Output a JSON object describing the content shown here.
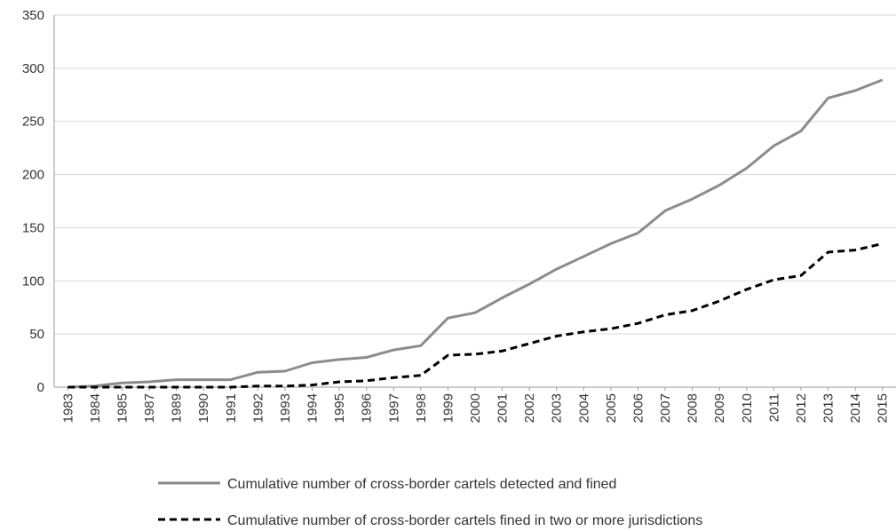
{
  "chart_data": {
    "type": "line",
    "categories": [
      "1983",
      "1984",
      "1985",
      "1987",
      "1989",
      "1990",
      "1991",
      "1992",
      "1993",
      "1994",
      "1995",
      "1996",
      "1997",
      "1998",
      "1999",
      "2000",
      "2001",
      "2002",
      "2003",
      "2004",
      "2005",
      "2006",
      "2007",
      "2008",
      "2009",
      "2010",
      "2011",
      "2012",
      "2013",
      "2014",
      "2015"
    ],
    "series": [
      {
        "name": "Cumulative number of cross-border cartels detected and fined",
        "style": "solid",
        "color": "#8c8c8c",
        "values": [
          0,
          1,
          4,
          5,
          7,
          7,
          7,
          14,
          15,
          23,
          26,
          28,
          35,
          39,
          65,
          70,
          84,
          97,
          111,
          123,
          135,
          145,
          166,
          177,
          190,
          206,
          227,
          241,
          272,
          279,
          289
        ]
      },
      {
        "name": "Cumulative number of cross-border cartels fined in two or more jurisdictions",
        "style": "dashed",
        "color": "#000000",
        "values": [
          0,
          0,
          0,
          0,
          0,
          0,
          0,
          1,
          1,
          2,
          5,
          6,
          9,
          11,
          30,
          31,
          34,
          41,
          48,
          52,
          55,
          60,
          68,
          72,
          81,
          92,
          101,
          105,
          127,
          129,
          135
        ]
      }
    ],
    "y_ticks": [
      "0",
      "50",
      "100",
      "150",
      "200",
      "250",
      "300",
      "350"
    ],
    "ylim": [
      0,
      350
    ],
    "grid": true,
    "legend_position": "bottom"
  }
}
